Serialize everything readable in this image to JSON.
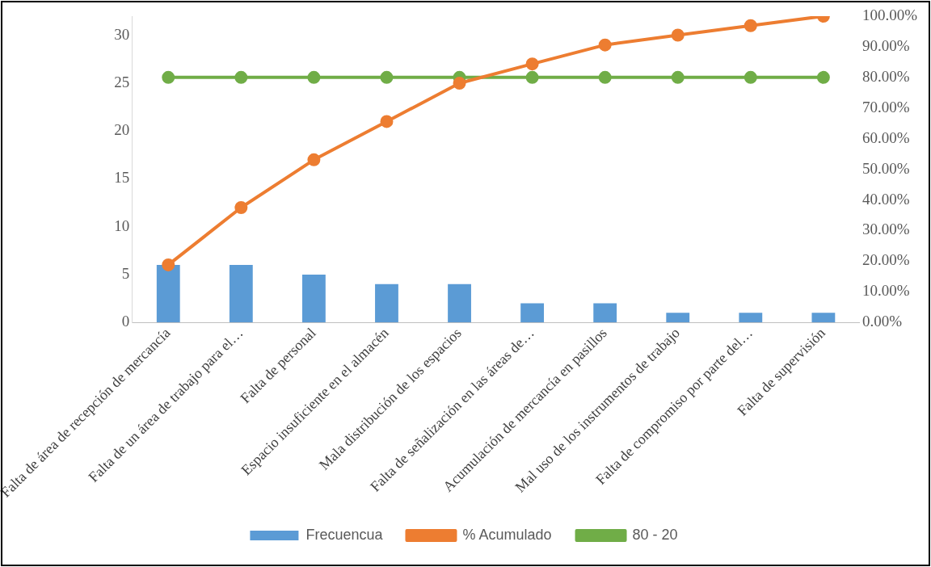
{
  "chart_data": {
    "type": "bar",
    "categories": [
      "Falta de área de recepción de mercancía",
      "Falta de un área de trabajo para el…",
      "Falta de personal",
      "Espacio insuficiente en el almacén",
      "Mala distribución de los espacios",
      "Falta de señalización en las áreas de…",
      "Acumulación de mercancía en pasillos",
      "Mal uso de los instrumentos de trabajo",
      "Falta de compromiso por parte del…",
      "Falta de supervisión"
    ],
    "series": [
      {
        "name": "Frecuencua",
        "color": "#5b9bd5",
        "values": [
          6,
          6,
          5,
          4,
          4,
          2,
          2,
          1,
          1,
          1
        ]
      },
      {
        "type": "line",
        "name": "% Acumulado",
        "color": "#ed7d31",
        "axis": "y2",
        "marker": "circle",
        "values": [
          18.8,
          37.5,
          53.1,
          65.6,
          78.1,
          84.4,
          90.6,
          93.8,
          96.9,
          100
        ]
      },
      {
        "type": "line",
        "name": "80 - 20",
        "color": "#70ad47",
        "axis": "y2",
        "marker": "circle",
        "values": [
          80,
          80,
          80,
          80,
          80,
          80,
          80,
          80,
          80,
          80
        ]
      }
    ],
    "ylim": [
      0,
      32
    ],
    "yticks": [
      0,
      5,
      10,
      15,
      20,
      25,
      30
    ],
    "y2lim": [
      0,
      100
    ],
    "y2ticks": [
      {
        "value": 0,
        "label": "0.00%"
      },
      {
        "value": 10,
        "label": "10.00%"
      },
      {
        "value": 20,
        "label": "20.00%"
      },
      {
        "value": 30,
        "label": "30.00%"
      },
      {
        "value": 40,
        "label": "40.00%"
      },
      {
        "value": 50,
        "label": "50.00%"
      },
      {
        "value": 60,
        "label": "60.00%"
      },
      {
        "value": 70,
        "label": "70.00%"
      },
      {
        "value": 80,
        "label": "80.00%"
      },
      {
        "value": 90,
        "label": "90.00%"
      },
      {
        "value": 100,
        "label": "100.00%"
      }
    ],
    "legend": "bottom"
  }
}
